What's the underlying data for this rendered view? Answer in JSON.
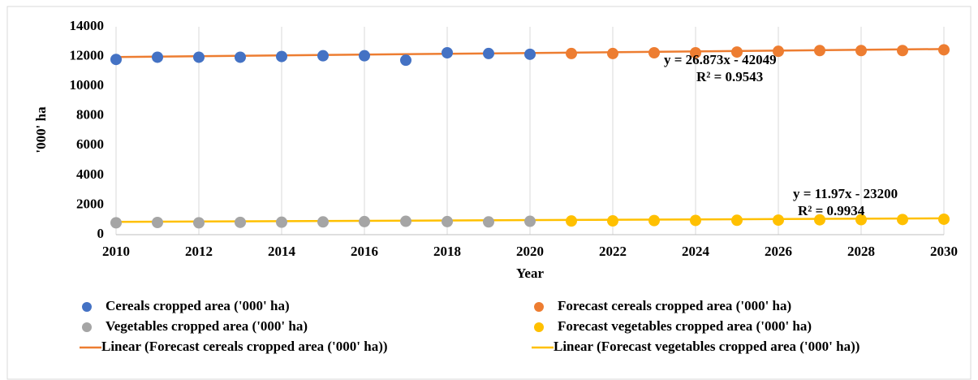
{
  "chart_data": {
    "type": "scatter",
    "xlabel": "Year",
    "ylabel": "'000' ha",
    "xlim": [
      2010,
      2030
    ],
    "xticks": [
      2010,
      2012,
      2014,
      2016,
      2018,
      2020,
      2022,
      2024,
      2026,
      2028,
      2030
    ],
    "ylim": [
      0,
      14000
    ],
    "yticks": [
      0,
      2000,
      4000,
      6000,
      8000,
      10000,
      12000,
      14000
    ],
    "grid": "x",
    "series": [
      {
        "name": "Cereals cropped area ('000' ha)",
        "color": "#4472c4",
        "mode": "markers",
        "x": [
          2010,
          2011,
          2012,
          2013,
          2014,
          2015,
          2016,
          2017,
          2018,
          2019,
          2020
        ],
        "values": [
          11800,
          11950,
          11950,
          11950,
          12000,
          12050,
          12050,
          11750,
          12250,
          12200,
          12150
        ]
      },
      {
        "name": "Forecast cereals cropped area ('000' ha)",
        "color": "#ed7d31",
        "mode": "markers",
        "x": [
          2021,
          2022,
          2023,
          2024,
          2025,
          2026,
          2027,
          2028,
          2029,
          2030
        ],
        "values": [
          12200,
          12200,
          12250,
          12250,
          12300,
          12350,
          12400,
          12400,
          12400,
          12450
        ]
      },
      {
        "name": "Vegetables cropped area ('000' ha)",
        "color": "#a5a5a5",
        "mode": "markers",
        "x": [
          2010,
          2011,
          2012,
          2013,
          2014,
          2015,
          2016,
          2017,
          2018,
          2019,
          2020
        ],
        "values": [
          800,
          820,
          800,
          830,
          840,
          860,
          880,
          900,
          880,
          860,
          900
        ]
      },
      {
        "name": "Forecast vegetables cropped area ('000' ha)",
        "color": "#ffc000",
        "mode": "markers",
        "x": [
          2021,
          2022,
          2023,
          2024,
          2025,
          2026,
          2027,
          2028,
          2029,
          2030
        ],
        "values": [
          920,
          930,
          950,
          960,
          970,
          980,
          1000,
          1010,
          1020,
          1040
        ]
      },
      {
        "name": "Linear (Forecast cereals cropped area ('000' ha))",
        "color": "#ed7d31",
        "mode": "line",
        "x": [
          2010,
          2030
        ],
        "values": [
          11966,
          12503
        ]
      },
      {
        "name": "Linear (Forecast vegetables cropped area ('000' ha))",
        "color": "#ffc000",
        "mode": "line",
        "x": [
          2010,
          2030
        ],
        "values": [
          860,
          1099
        ]
      }
    ],
    "annotations": [
      "y = 26.873x - 42049",
      "R² = 0.9543",
      "y = 11.97x - 23200",
      "R² = 0.9934"
    ]
  }
}
